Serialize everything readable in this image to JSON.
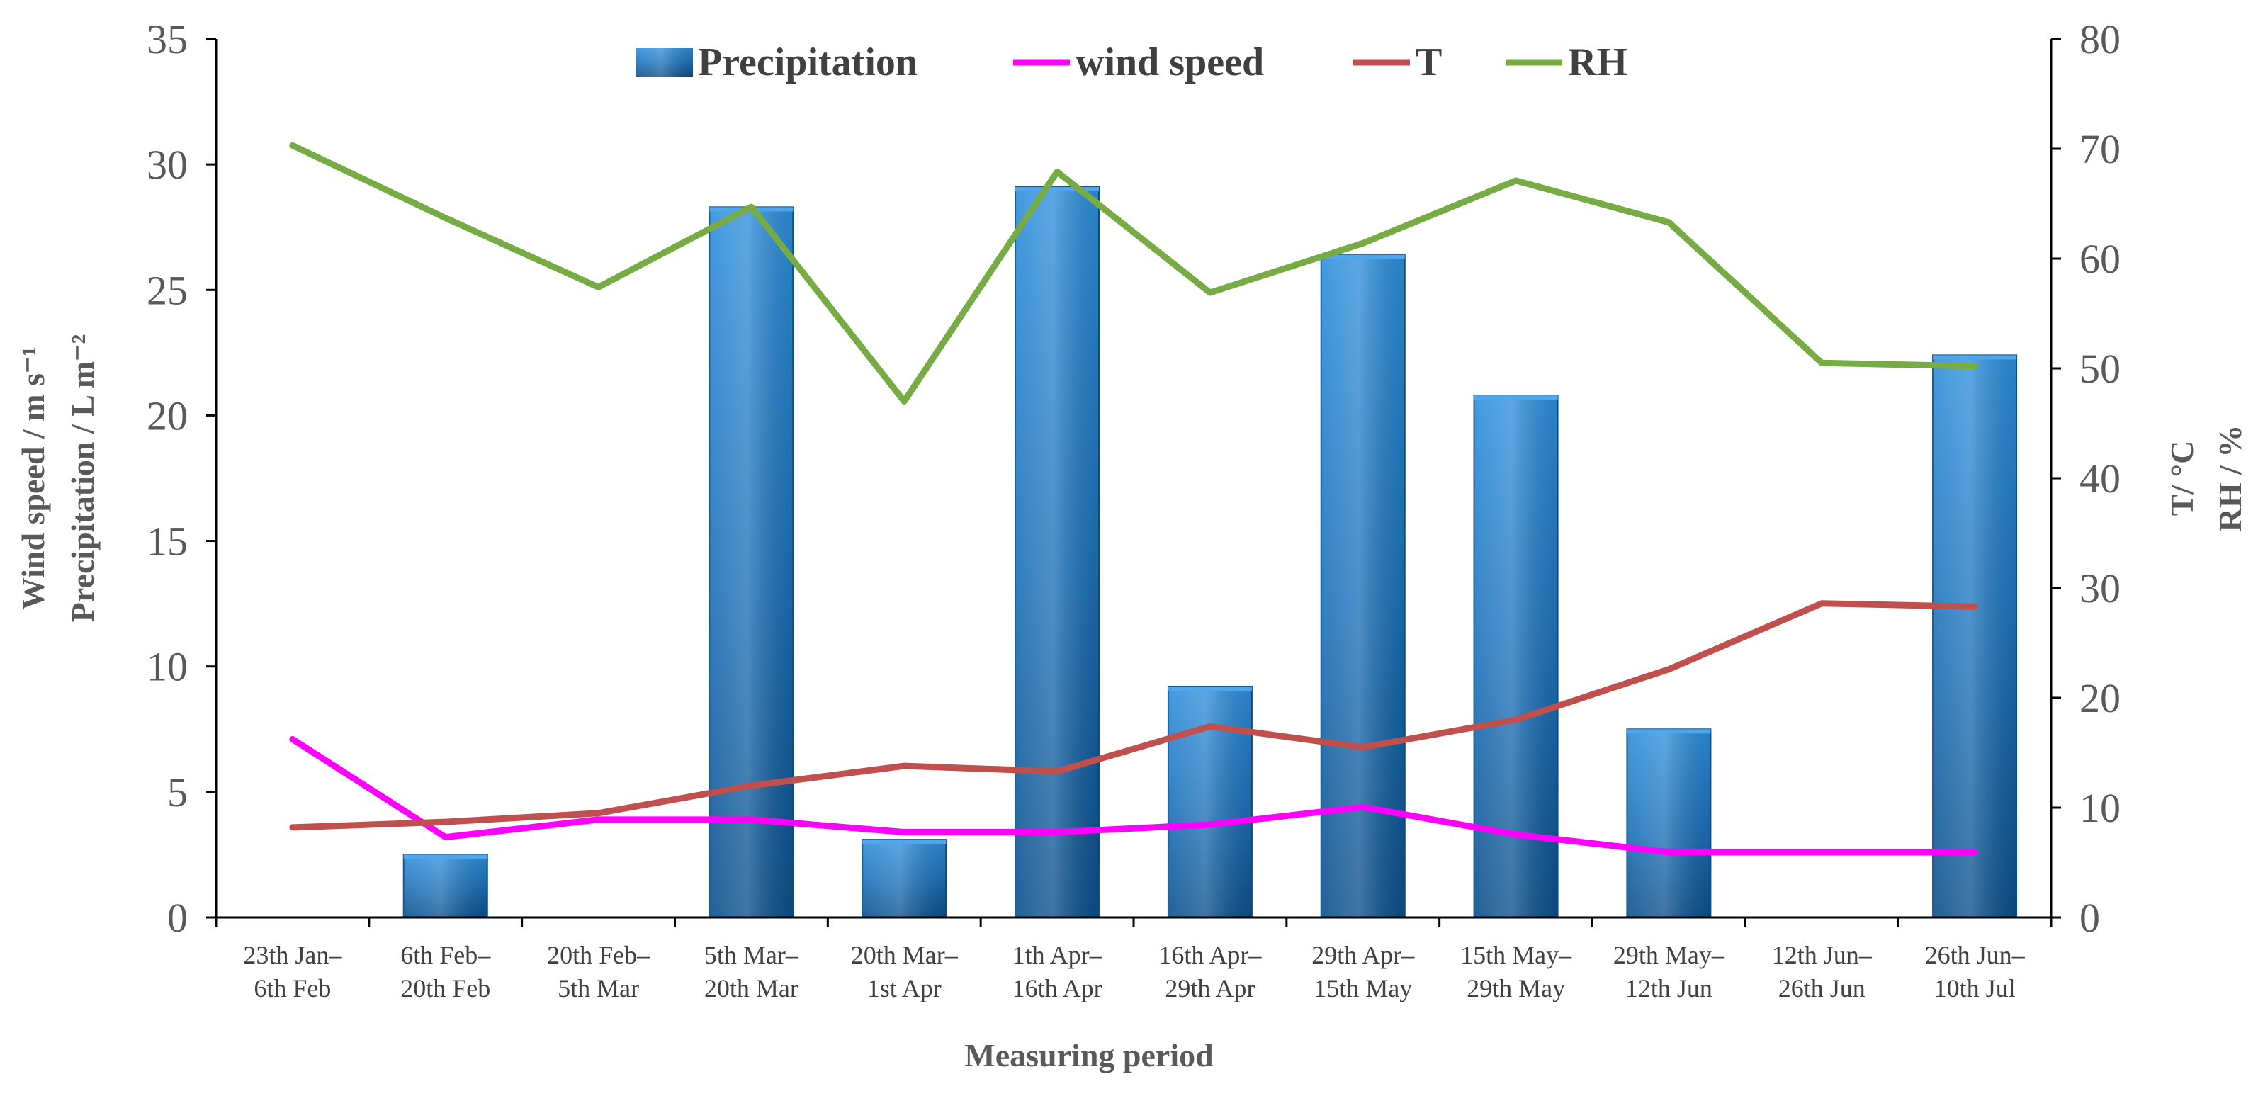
{
  "chart_data": {
    "type": "bar+line",
    "categories": [
      [
        "23th Jan–",
        "6th Feb"
      ],
      [
        "6th Feb–",
        "20th Feb"
      ],
      [
        "20th Feb–",
        "5th Mar"
      ],
      [
        "5th Mar–",
        "20th Mar"
      ],
      [
        "20th Mar–",
        "1st Apr"
      ],
      [
        "1th Apr–",
        "16th Apr"
      ],
      [
        "16th Apr–",
        "29th Apr"
      ],
      [
        "29th Apr–",
        "15th May"
      ],
      [
        "15th May–",
        "29th May"
      ],
      [
        "29th May–",
        "12th Jun"
      ],
      [
        "12th Jun–",
        "26th Jun"
      ],
      [
        "26th Jun–",
        "10th Jul"
      ]
    ],
    "series": [
      {
        "name": "Precipitation",
        "type": "bar",
        "axis": "left",
        "color": "#1f77c4",
        "values": [
          0,
          2.5,
          0,
          28.3,
          3.1,
          29.1,
          9.2,
          26.4,
          20.8,
          7.5,
          0,
          22.4
        ]
      },
      {
        "name": "wind speed",
        "type": "line",
        "axis": "left",
        "color": "#ff00ff",
        "values": [
          7.1,
          3.2,
          3.9,
          3.9,
          3.4,
          3.4,
          3.7,
          4.4,
          3.3,
          2.6,
          2.6,
          2.6
        ]
      },
      {
        "name": "T",
        "type": "line",
        "axis": "right",
        "color": "#c0504d",
        "values": [
          8.2,
          8.7,
          9.5,
          12.0,
          13.8,
          13.3,
          17.4,
          15.5,
          18.0,
          22.6,
          28.6,
          28.3
        ]
      },
      {
        "name": "RH",
        "type": "line",
        "axis": "right",
        "color": "#77ab43",
        "values": [
          70.3,
          63.7,
          57.4,
          64.7,
          47.0,
          67.9,
          56.9,
          61.4,
          67.1,
          63.3,
          50.5,
          50.2
        ]
      }
    ],
    "legend": [
      "Precipitation",
      "wind speed",
      "T",
      "RH"
    ],
    "legend_position": "top",
    "xlabel": "Measuring period",
    "ylabel_left": [
      "Wind speed / m s⁻¹",
      "Precipitation /  L m⁻²"
    ],
    "ylabel_right": [
      "T/ °C",
      "RH / %"
    ],
    "ylim_left": [
      0,
      35
    ],
    "yticks_left": [
      0,
      5,
      10,
      15,
      20,
      25,
      30,
      35
    ],
    "ylim_right": [
      0,
      80
    ],
    "yticks_right": [
      0,
      10,
      20,
      30,
      40,
      50,
      60,
      70,
      80
    ],
    "grid": false
  }
}
